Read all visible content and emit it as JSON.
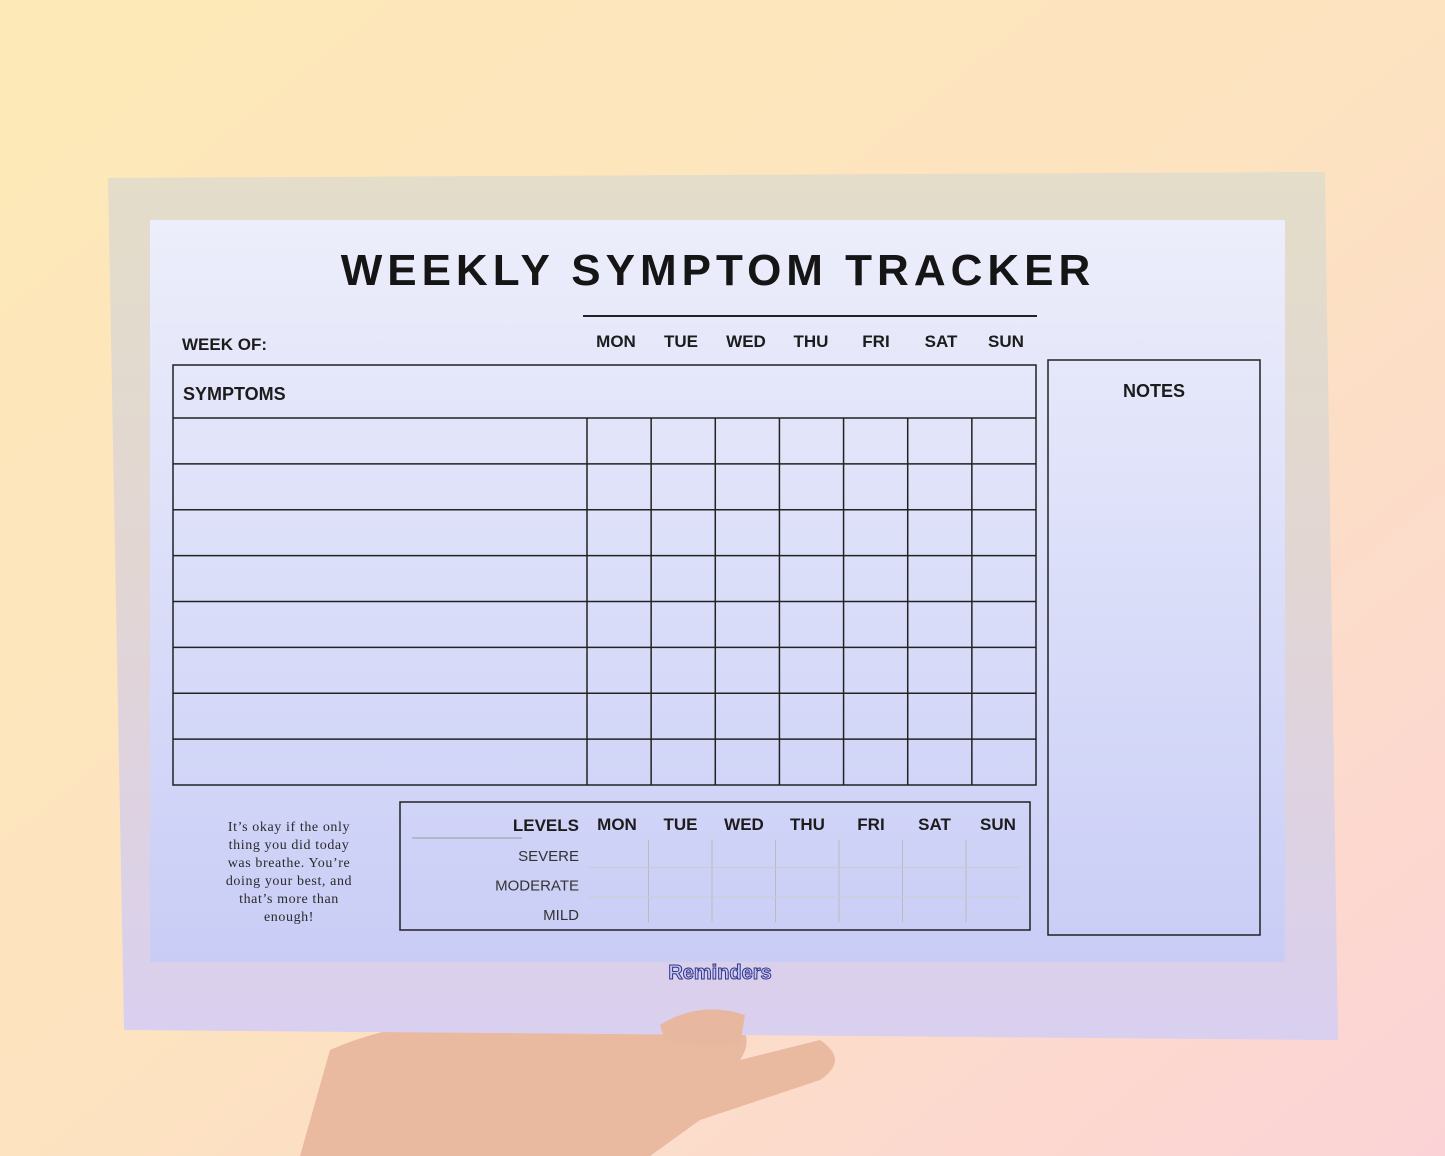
{
  "header": {
    "title": "WEEKLY SYMPTOM TRACKER",
    "week_of": "WEEK OF:"
  },
  "days": [
    "MON",
    "TUE",
    "WED",
    "THU",
    "FRI",
    "SAT",
    "SUN"
  ],
  "symptoms": {
    "header": "SYMPTOMS"
  },
  "notes": {
    "header": "NOTES"
  },
  "quote": [
    "It’s okay if the only",
    "thing you did today",
    "was breathe. You’re",
    "doing your best, and",
    "that’s more than",
    "enough!"
  ],
  "levels": {
    "header": "LEVELS",
    "rows": [
      "SEVERE",
      "MODERATE",
      "MILD"
    ]
  },
  "brand": "Reminders"
}
